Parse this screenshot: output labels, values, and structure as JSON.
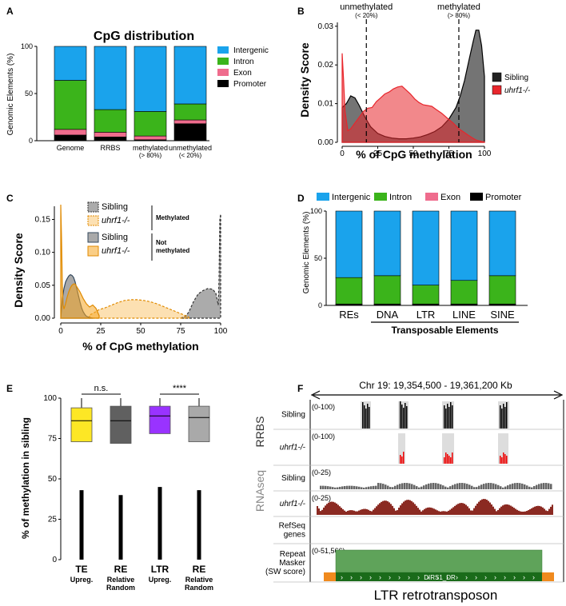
{
  "panels": {
    "A": "A",
    "B": "B",
    "C": "C",
    "D": "D",
    "E": "E",
    "F": "F"
  },
  "chart_data": [
    {
      "panel": "A",
      "type": "bar",
      "title": "CpG distribution",
      "ylabel": "Genomic Elements (%)",
      "ylim": [
        0,
        100
      ],
      "yticks": [
        "0",
        "50",
        "100"
      ],
      "categories": [
        "Genome",
        "RRBS",
        "methylated",
        "unmethylated"
      ],
      "category_notes": [
        "",
        "",
        "(> 80%)",
        "(< 20%)"
      ],
      "series": [
        {
          "name": "Promoter",
          "color": "#000000",
          "values": [
            6,
            4,
            1,
            18
          ]
        },
        {
          "name": "Exon",
          "color": "#ef6c8d",
          "values": [
            6,
            5,
            4,
            4
          ]
        },
        {
          "name": "Intron",
          "color": "#3bb41b",
          "values": [
            52,
            24,
            26,
            17
          ]
        },
        {
          "name": "Intergenic",
          "color": "#1aa3ec",
          "values": [
            36,
            67,
            69,
            61
          ]
        }
      ],
      "legend_order": [
        "Intergenic",
        "Intron",
        "Exon",
        "Promoter"
      ],
      "legend": "right"
    },
    {
      "panel": "B",
      "type": "area",
      "xlabel": "% of CpG methylation",
      "ylabel": "Density Score",
      "xlim": [
        0,
        100
      ],
      "ylim": [
        0,
        0.031
      ],
      "xticks": [
        "0",
        "25",
        "50",
        "75",
        "100"
      ],
      "yticks": [
        "0.00",
        "0.01",
        "0.02",
        "0.03"
      ],
      "vlines": [
        {
          "x": 17,
          "label": "unmethylated",
          "sub": "(< 20%)"
        },
        {
          "x": 82,
          "label": "methylated",
          "sub": "(> 80%)"
        }
      ],
      "series": [
        {
          "name": "Sibling",
          "color": "#666666",
          "x": [
            0,
            3,
            6,
            9,
            12,
            16,
            20,
            25,
            30,
            35,
            40,
            45,
            50,
            55,
            60,
            65,
            70,
            75,
            80,
            83,
            86,
            89,
            92,
            94,
            96,
            98,
            100
          ],
          "y": [
            0.009,
            0.01,
            0.012,
            0.0115,
            0.0095,
            0.0065,
            0.004,
            0.0023,
            0.0015,
            0.0011,
            0.0009,
            0.0009,
            0.0011,
            0.0014,
            0.002,
            0.0028,
            0.004,
            0.006,
            0.009,
            0.012,
            0.016,
            0.021,
            0.026,
            0.029,
            0.029,
            0.025,
            0.017
          ]
        },
        {
          "name": "uhrf1-/-",
          "color": "#e8262c",
          "x": [
            0,
            1,
            2,
            4,
            6,
            9,
            12,
            15,
            18,
            21,
            24,
            27,
            30,
            33,
            36,
            39,
            42,
            45,
            48,
            51,
            54,
            57,
            60,
            63,
            66,
            70,
            74,
            78,
            82,
            86,
            90,
            94,
            98,
            100
          ],
          "y": [
            0.023,
            0.016,
            0.008,
            0.003,
            0.0035,
            0.005,
            0.0065,
            0.008,
            0.0088,
            0.009,
            0.0105,
            0.0115,
            0.0125,
            0.013,
            0.0138,
            0.0143,
            0.0145,
            0.0135,
            0.0125,
            0.0112,
            0.0103,
            0.0097,
            0.0095,
            0.0093,
            0.0085,
            0.0075,
            0.0062,
            0.005,
            0.0035,
            0.0025,
            0.0015,
            0.0006,
            0.0002,
            0.0001
          ]
        }
      ],
      "legend": "right"
    },
    {
      "panel": "C",
      "type": "area",
      "xlabel": "% of CpG methylation",
      "ylabel": "Density Score",
      "xlim": [
        0,
        100
      ],
      "ylim": [
        0,
        0.17
      ],
      "xticks": [
        "0",
        "25",
        "50",
        "75",
        "100"
      ],
      "yticks": [
        "0.00",
        "0.05",
        "0.10",
        "0.15"
      ],
      "series": [
        {
          "name": "Sibling",
          "group": "Methylated",
          "color": "#9d9d9d",
          "style": "dashed",
          "x": [
            75,
            78,
            80,
            83,
            86,
            89,
            92,
            95,
            97,
            98.5,
            99,
            99.5,
            100
          ],
          "y": [
            0,
            0.003,
            0.009,
            0.025,
            0.037,
            0.042,
            0.045,
            0.044,
            0.038,
            0.02,
            0.06,
            0.15,
            0.158
          ]
        },
        {
          "name": "uhrf1-/-",
          "group": "Methylated",
          "color": "#f5a623",
          "style": "dashed",
          "x": [
            18,
            20,
            22,
            24,
            28,
            32,
            36,
            40,
            44,
            48,
            52,
            56,
            60,
            64,
            68,
            72,
            76,
            80
          ],
          "y": [
            0.005,
            0.007,
            0.01,
            0.013,
            0.016,
            0.02,
            0.024,
            0.027,
            0.028,
            0.028,
            0.027,
            0.025,
            0.022,
            0.018,
            0.014,
            0.01,
            0.006,
            0.002
          ]
        },
        {
          "name": "Sibling",
          "group": "Not methylated",
          "color": "#8a8a8a",
          "style": "solid",
          "x": [
            0,
            1,
            2,
            3,
            4,
            5,
            6,
            7,
            8,
            9,
            10,
            11,
            12,
            13,
            14,
            15,
            16,
            18,
            20
          ],
          "y": [
            0,
            0.03,
            0.045,
            0.055,
            0.06,
            0.064,
            0.066,
            0.065,
            0.062,
            0.055,
            0.045,
            0.035,
            0.025,
            0.016,
            0.01,
            0.006,
            0.003,
            0.001,
            0
          ]
        },
        {
          "name": "uhrf1-/-",
          "group": "Not methylated",
          "color": "#f5a623",
          "style": "solid",
          "x": [
            0,
            0.5,
            1,
            1.5,
            2,
            3,
            4,
            5,
            6,
            7,
            8,
            9,
            10,
            12,
            14,
            16,
            18,
            20,
            22,
            24
          ],
          "y": [
            0.18,
            0.12,
            0.05,
            0.02,
            0.014,
            0.022,
            0.032,
            0.04,
            0.046,
            0.05,
            0.052,
            0.052,
            0.048,
            0.04,
            0.03,
            0.022,
            0.017,
            0.02,
            0.015,
            0.004
          ]
        }
      ],
      "legend_groups": [
        "Methylated",
        "Not methylated"
      ],
      "legend": "top-left"
    },
    {
      "panel": "D",
      "type": "bar",
      "ylabel": "Genomic Elements (%)",
      "ylim": [
        0,
        100
      ],
      "yticks": [
        "0",
        "50",
        "100"
      ],
      "categories": [
        "REs",
        "DNA",
        "LTR",
        "LINE",
        "SINE"
      ],
      "group_label": "Transposable Elements",
      "series": [
        {
          "name": "Promoter",
          "color": "#000000",
          "values": [
            1,
            1,
            1,
            1,
            1
          ]
        },
        {
          "name": "Exon",
          "color": "#ef6c8d",
          "values": [
            0.5,
            0.5,
            0.5,
            0.5,
            0.5
          ]
        },
        {
          "name": "Intron",
          "color": "#3bb41b",
          "values": [
            28,
            30,
            20,
            25,
            30
          ]
        },
        {
          "name": "Intergenic",
          "color": "#1aa3ec",
          "values": [
            70.5,
            68.5,
            78.5,
            73.5,
            68.5
          ]
        }
      ],
      "legend_order": [
        "Intergenic",
        "Intron",
        "Exon",
        "Promoter"
      ],
      "legend": "top"
    },
    {
      "panel": "E",
      "type": "box",
      "ylabel": "% of methylation in sibling",
      "ylim": [
        0,
        100
      ],
      "yticks": [
        "0",
        "25",
        "50",
        "75",
        "100"
      ],
      "categories": [
        "TE",
        "RE",
        "LTR",
        "RE"
      ],
      "sub_labels": [
        [
          "Upreg."
        ],
        [
          "Relative",
          "Random"
        ],
        [
          "Upreg."
        ],
        [
          "Relative",
          "Random"
        ]
      ],
      "colors": [
        "#fde725",
        "#606060",
        "#9933ff",
        "#a9a9a9"
      ],
      "boxes": [
        {
          "whisker_low": 0,
          "q1": 73,
          "median": 86,
          "q3": 94,
          "whisker_high": 100,
          "outlier_top": 43
        },
        {
          "whisker_low": 0,
          "q1": 72,
          "median": 86,
          "q3": 95,
          "whisker_high": 100,
          "outlier_top": 40
        },
        {
          "whisker_low": 0,
          "q1": 78,
          "median": 89,
          "q3": 95,
          "whisker_high": 100,
          "outlier_top": 45
        },
        {
          "whisker_low": 0,
          "q1": 73,
          "median": 88,
          "q3": 95,
          "whisker_high": 100,
          "outlier_top": 43
        }
      ],
      "comparisons": [
        {
          "from": 0,
          "to": 1,
          "label": "n.s."
        },
        {
          "from": 2,
          "to": 3,
          "label": "****"
        }
      ]
    },
    {
      "panel": "F",
      "type": "genome-track",
      "title": "Chr 19: 19,354,500 - 19,361,200 Kb",
      "group_labels": [
        "RRBS",
        "RNAseq"
      ],
      "tracks": [
        {
          "label": "Sibling",
          "range": "(0-100)",
          "group": "RRBS"
        },
        {
          "label": "uhrf1-/-",
          "range": "(0-100)",
          "group": "RRBS"
        },
        {
          "label": "Sibling",
          "range": "(0-25)",
          "group": "RNAseq"
        },
        {
          "label": "uhrf1-/-",
          "range": "(0-25)",
          "group": "RNAseq"
        },
        {
          "label": "RefSeq genes",
          "range": "",
          "group": ""
        },
        {
          "label": "Repeat Masker (SW score)",
          "range": "(0-51,566)",
          "group": ""
        }
      ],
      "feature_label": "DIRS1_DR",
      "xlabel": "LTR retrotransposon"
    }
  ]
}
